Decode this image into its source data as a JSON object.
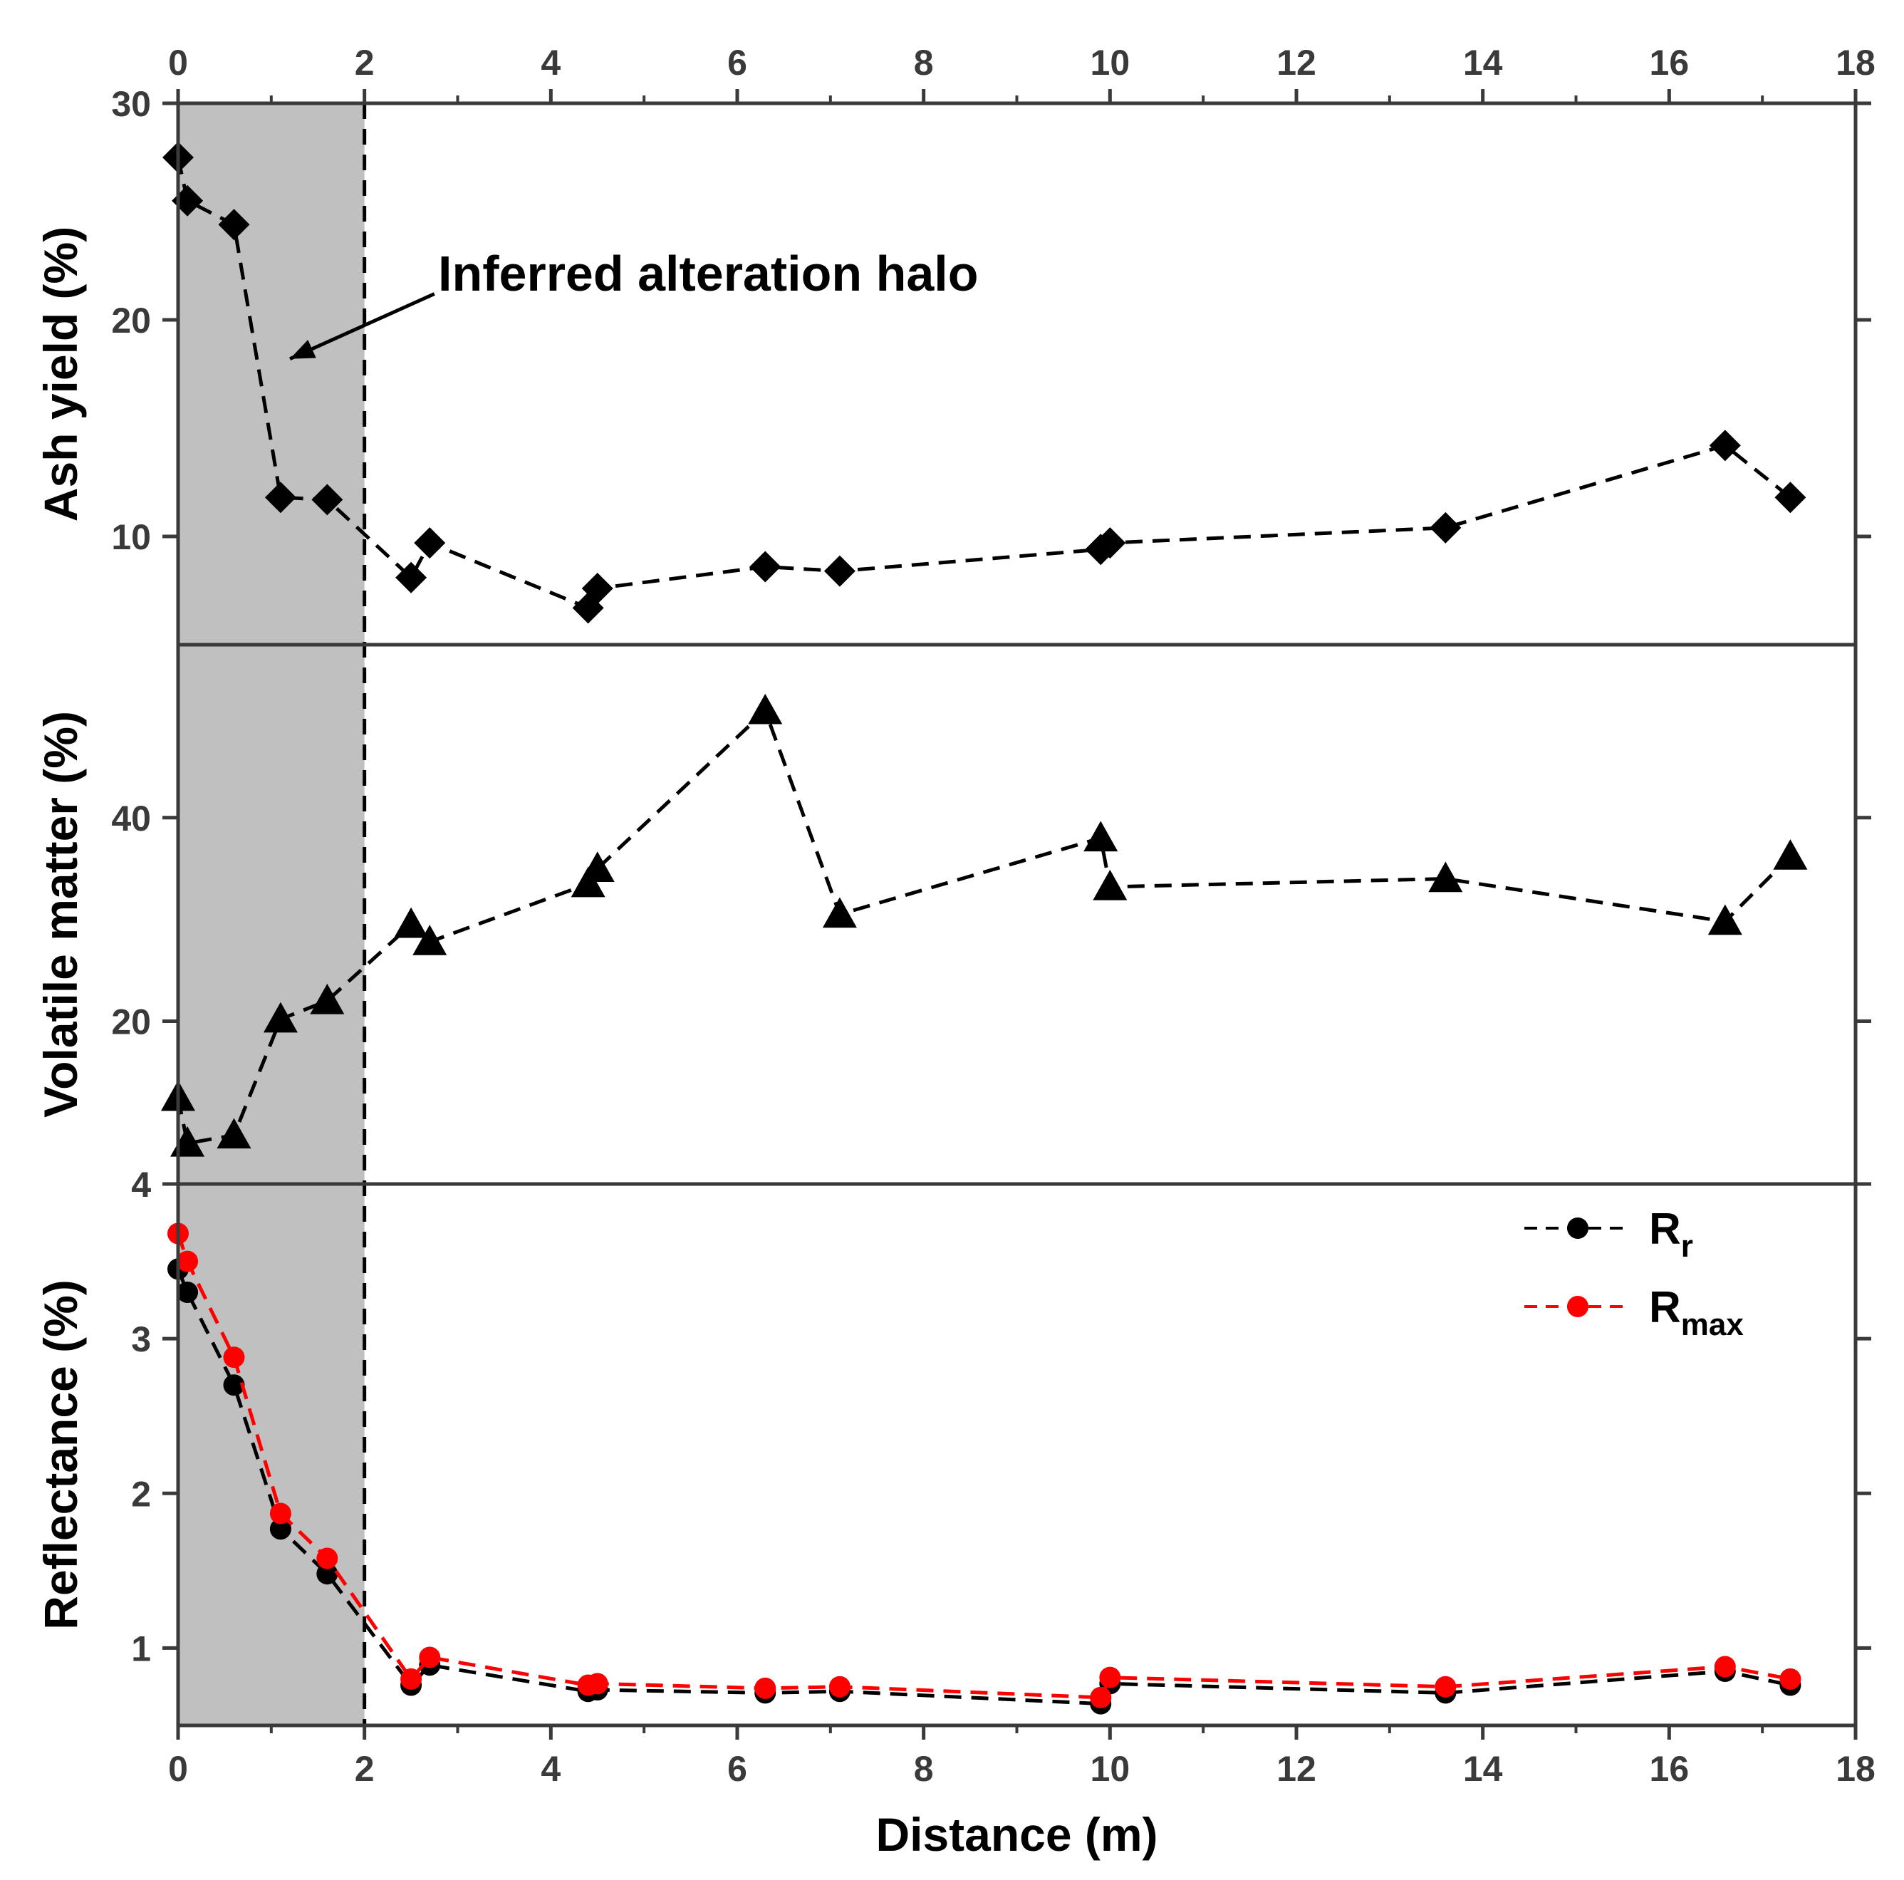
{
  "chart_data": {
    "type": "line",
    "xlabel": "Distance (m)",
    "xlim": [
      0,
      18
    ],
    "xticks": [
      0,
      2,
      4,
      6,
      8,
      10,
      12,
      14,
      16,
      18
    ],
    "shaded_region": {
      "x_range": [
        0,
        2
      ],
      "color": "#c0c0c0"
    },
    "annotation": {
      "text": "Inferred alteration halo",
      "arrow_target": [
        1.2,
        18.2
      ],
      "arrow_tail": [
        2.75,
        21.2
      ]
    },
    "panels": [
      {
        "ylabel": "Ash yield (%)",
        "ylim": [
          5,
          30
        ],
        "yticks": [
          10,
          20,
          30
        ],
        "series": [
          {
            "name": "Ash yield",
            "marker": "diamond",
            "color": "#000000",
            "x": [
              0,
              0.1,
              0.6,
              1.1,
              1.6,
              2.5,
              2.7,
              4.4,
              4.5,
              6.3,
              7.1,
              9.9,
              10.0,
              13.6,
              16.6,
              17.3
            ],
            "y": [
              27.5,
              25.5,
              24.4,
              11.8,
              11.7,
              8.1,
              9.7,
              6.7,
              7.6,
              8.6,
              8.4,
              9.4,
              9.7,
              10.4,
              14.2,
              11.8
            ]
          }
        ]
      },
      {
        "ylabel": "Volatile matter (%)",
        "ylim": [
          4,
          57
        ],
        "yticks": [
          4,
          20,
          40
        ],
        "series": [
          {
            "name": "Volatile matter",
            "marker": "triangle",
            "color": "#000000",
            "x": [
              0,
              0.1,
              0.6,
              1.1,
              1.6,
              2.5,
              2.7,
              4.4,
              4.5,
              6.3,
              7.1,
              9.9,
              10.0,
              13.6,
              16.6,
              17.3
            ],
            "y": [
              12.5,
              8.0,
              8.8,
              20.2,
              22.0,
              29.5,
              27.8,
              33.5,
              35.0,
              50.5,
              30.5,
              38.0,
              33.2,
              34.0,
              29.8,
              36.2
            ]
          }
        ]
      },
      {
        "ylabel": "Reflectance (%)",
        "ylim": [
          0.5,
          4
        ],
        "yticks": [
          1,
          2,
          3,
          4
        ],
        "series": [
          {
            "name": "R_r",
            "marker": "circle",
            "color": "#000000",
            "x": [
              0,
              0.1,
              0.6,
              1.1,
              1.6,
              2.5,
              2.7,
              4.4,
              4.5,
              6.3,
              7.1,
              9.9,
              10.0,
              13.6,
              16.6,
              17.3
            ],
            "y": [
              3.45,
              3.3,
              2.7,
              1.77,
              1.48,
              0.76,
              0.89,
              0.72,
              0.73,
              0.71,
              0.72,
              0.64,
              0.77,
              0.71,
              0.85,
              0.76
            ]
          },
          {
            "name": "R_max",
            "marker": "circle",
            "color": "#ff0000",
            "x": [
              0,
              0.1,
              0.6,
              1.1,
              1.6,
              2.5,
              2.7,
              4.4,
              4.5,
              6.3,
              7.1,
              9.9,
              10.0,
              13.6,
              16.6,
              17.3
            ],
            "y": [
              3.68,
              3.5,
              2.88,
              1.87,
              1.58,
              0.8,
              0.94,
              0.76,
              0.77,
              0.74,
              0.75,
              0.68,
              0.81,
              0.75,
              0.88,
              0.8
            ]
          }
        ],
        "legend": {
          "position": "top-right",
          "entries": [
            {
              "main": "R",
              "sub": "r",
              "color": "#000000"
            },
            {
              "main": "R",
              "sub": "max",
              "color": "#ff0000"
            }
          ]
        }
      }
    ]
  }
}
